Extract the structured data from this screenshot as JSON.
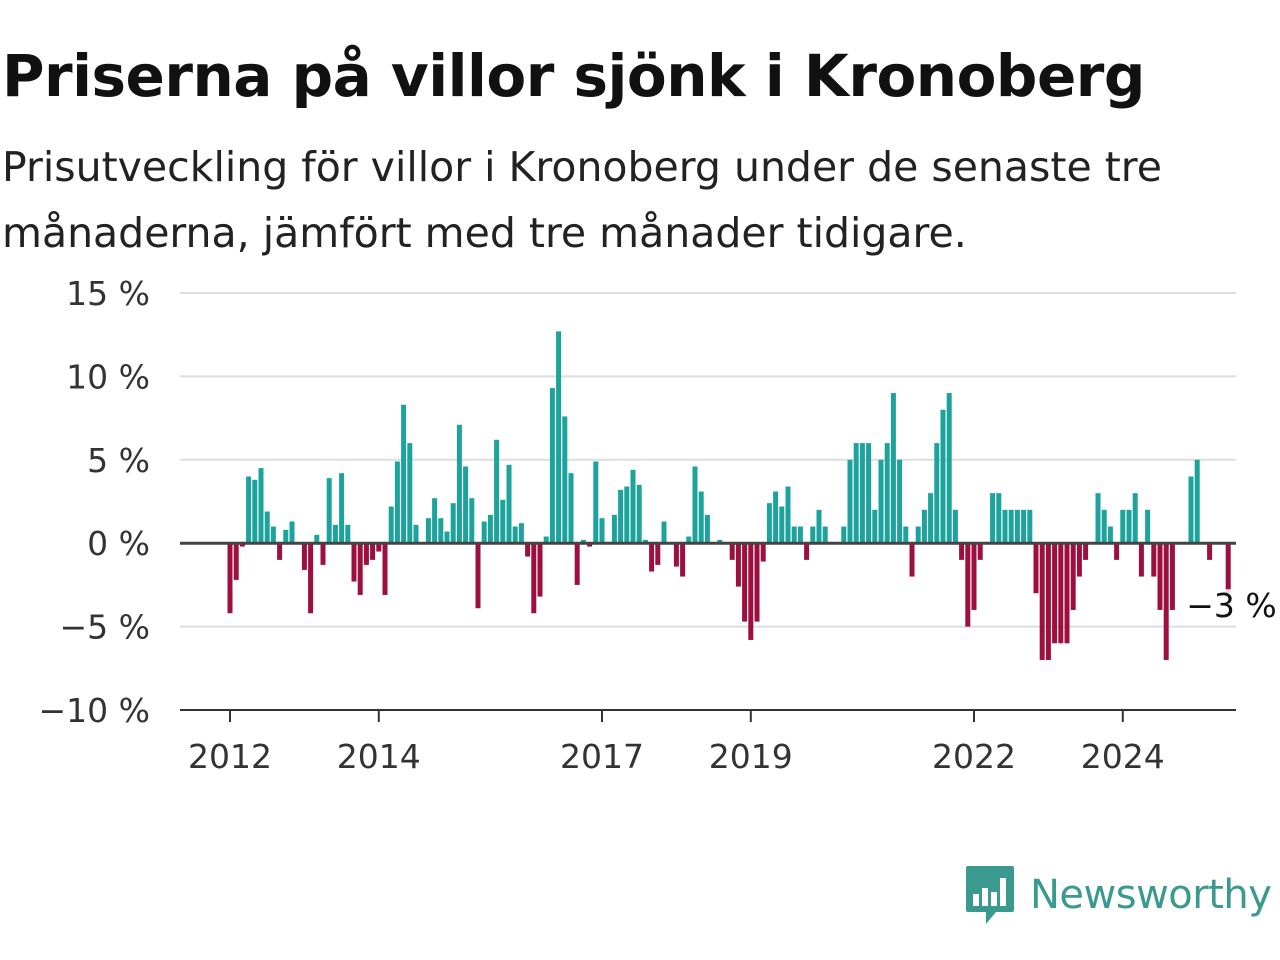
{
  "header": {
    "title": "Priserna på villor sjönk i Kronoberg",
    "subtitle": "Prisutveckling för villor i Kronoberg under de senaste tre månaderna, jämfört med tre månader tidigare."
  },
  "brand": {
    "name": "Newsworthy",
    "icon": "newsworthy-logo-icon",
    "color": "#3a9a8f"
  },
  "colors": {
    "positive": "#1ba39c",
    "negative": "#9c0f3e",
    "zero_line": "#444444",
    "grid": "#dddddd"
  },
  "chart_data": {
    "type": "bar",
    "title": "Priserna på villor sjönk i Kronoberg",
    "subtitle": "Prisutveckling för villor i Kronoberg under de senaste tre månaderna, jämfört med tre månader tidigare.",
    "xlabel": "",
    "ylabel": "",
    "ylim": [
      -10,
      15
    ],
    "y_ticks": [
      -10,
      -5,
      0,
      5,
      10,
      15
    ],
    "y_tick_labels": [
      "−10 %",
      "−5 %",
      "0 %",
      "5 %",
      "10 %",
      "15 %"
    ],
    "x_ticks": [
      "2012",
      "2014",
      "2017",
      "2019",
      "2022",
      "2024"
    ],
    "grid": true,
    "x_start": "2012-01",
    "frequency": "monthly",
    "last_value_label": "−3 %",
    "values": [
      -4.2,
      -2.2,
      -0.2,
      4.0,
      3.8,
      4.5,
      1.9,
      1.0,
      -1.0,
      0.8,
      1.3,
      0.0,
      -1.6,
      -4.2,
      0.5,
      -1.3,
      3.9,
      1.1,
      4.2,
      1.1,
      -2.3,
      -3.1,
      -1.3,
      -1.0,
      -0.5,
      -3.1,
      2.2,
      4.9,
      8.3,
      6.0,
      1.1,
      0.0,
      1.5,
      2.7,
      1.5,
      0.7,
      2.4,
      7.1,
      4.6,
      2.7,
      -3.9,
      1.3,
      1.7,
      6.2,
      2.6,
      4.7,
      1.0,
      1.2,
      -0.8,
      -4.2,
      -3.2,
      0.4,
      9.3,
      12.7,
      7.6,
      4.2,
      -2.5,
      0.2,
      -0.2,
      4.9,
      1.5,
      0.0,
      1.7,
      3.2,
      3.4,
      4.4,
      3.5,
      0.2,
      -1.7,
      -1.3,
      1.3,
      0.0,
      -1.4,
      -2.0,
      0.4,
      4.6,
      3.1,
      1.7,
      0.0,
      0.2,
      0.0,
      -1.0,
      -2.6,
      -4.7,
      -5.8,
      -4.7,
      -1.1,
      2.4,
      3.1,
      2.2,
      3.4,
      1.0,
      1.0,
      -1.0,
      1.0,
      2.0,
      1.0,
      0.0,
      0.0,
      1.0,
      5.0,
      6.0,
      6.0,
      6.0,
      2.0,
      5.0,
      6.0,
      9.0,
      5.0,
      1.0,
      -2.0,
      1.0,
      2.0,
      3.0,
      6.0,
      8.0,
      9.0,
      2.0,
      -1.0,
      -5.0,
      -4.0,
      -1.0,
      0.0,
      3.0,
      3.0,
      2.0,
      2.0,
      2.0,
      2.0,
      2.0,
      -3.0,
      -7.0,
      -7.0,
      -6.0,
      -6.0,
      -6.0,
      -4.0,
      -2.0,
      -1.0,
      0.0,
      3.0,
      2.0,
      1.0,
      -1.0,
      2.0,
      2.0,
      3.0,
      -2.0,
      2.0,
      -2.0,
      -4.0,
      -7.0,
      -4.0,
      0.0,
      0.0,
      4.0,
      5.0,
      0.0,
      -1.0,
      0.0,
      0.0,
      -3.0
    ]
  }
}
